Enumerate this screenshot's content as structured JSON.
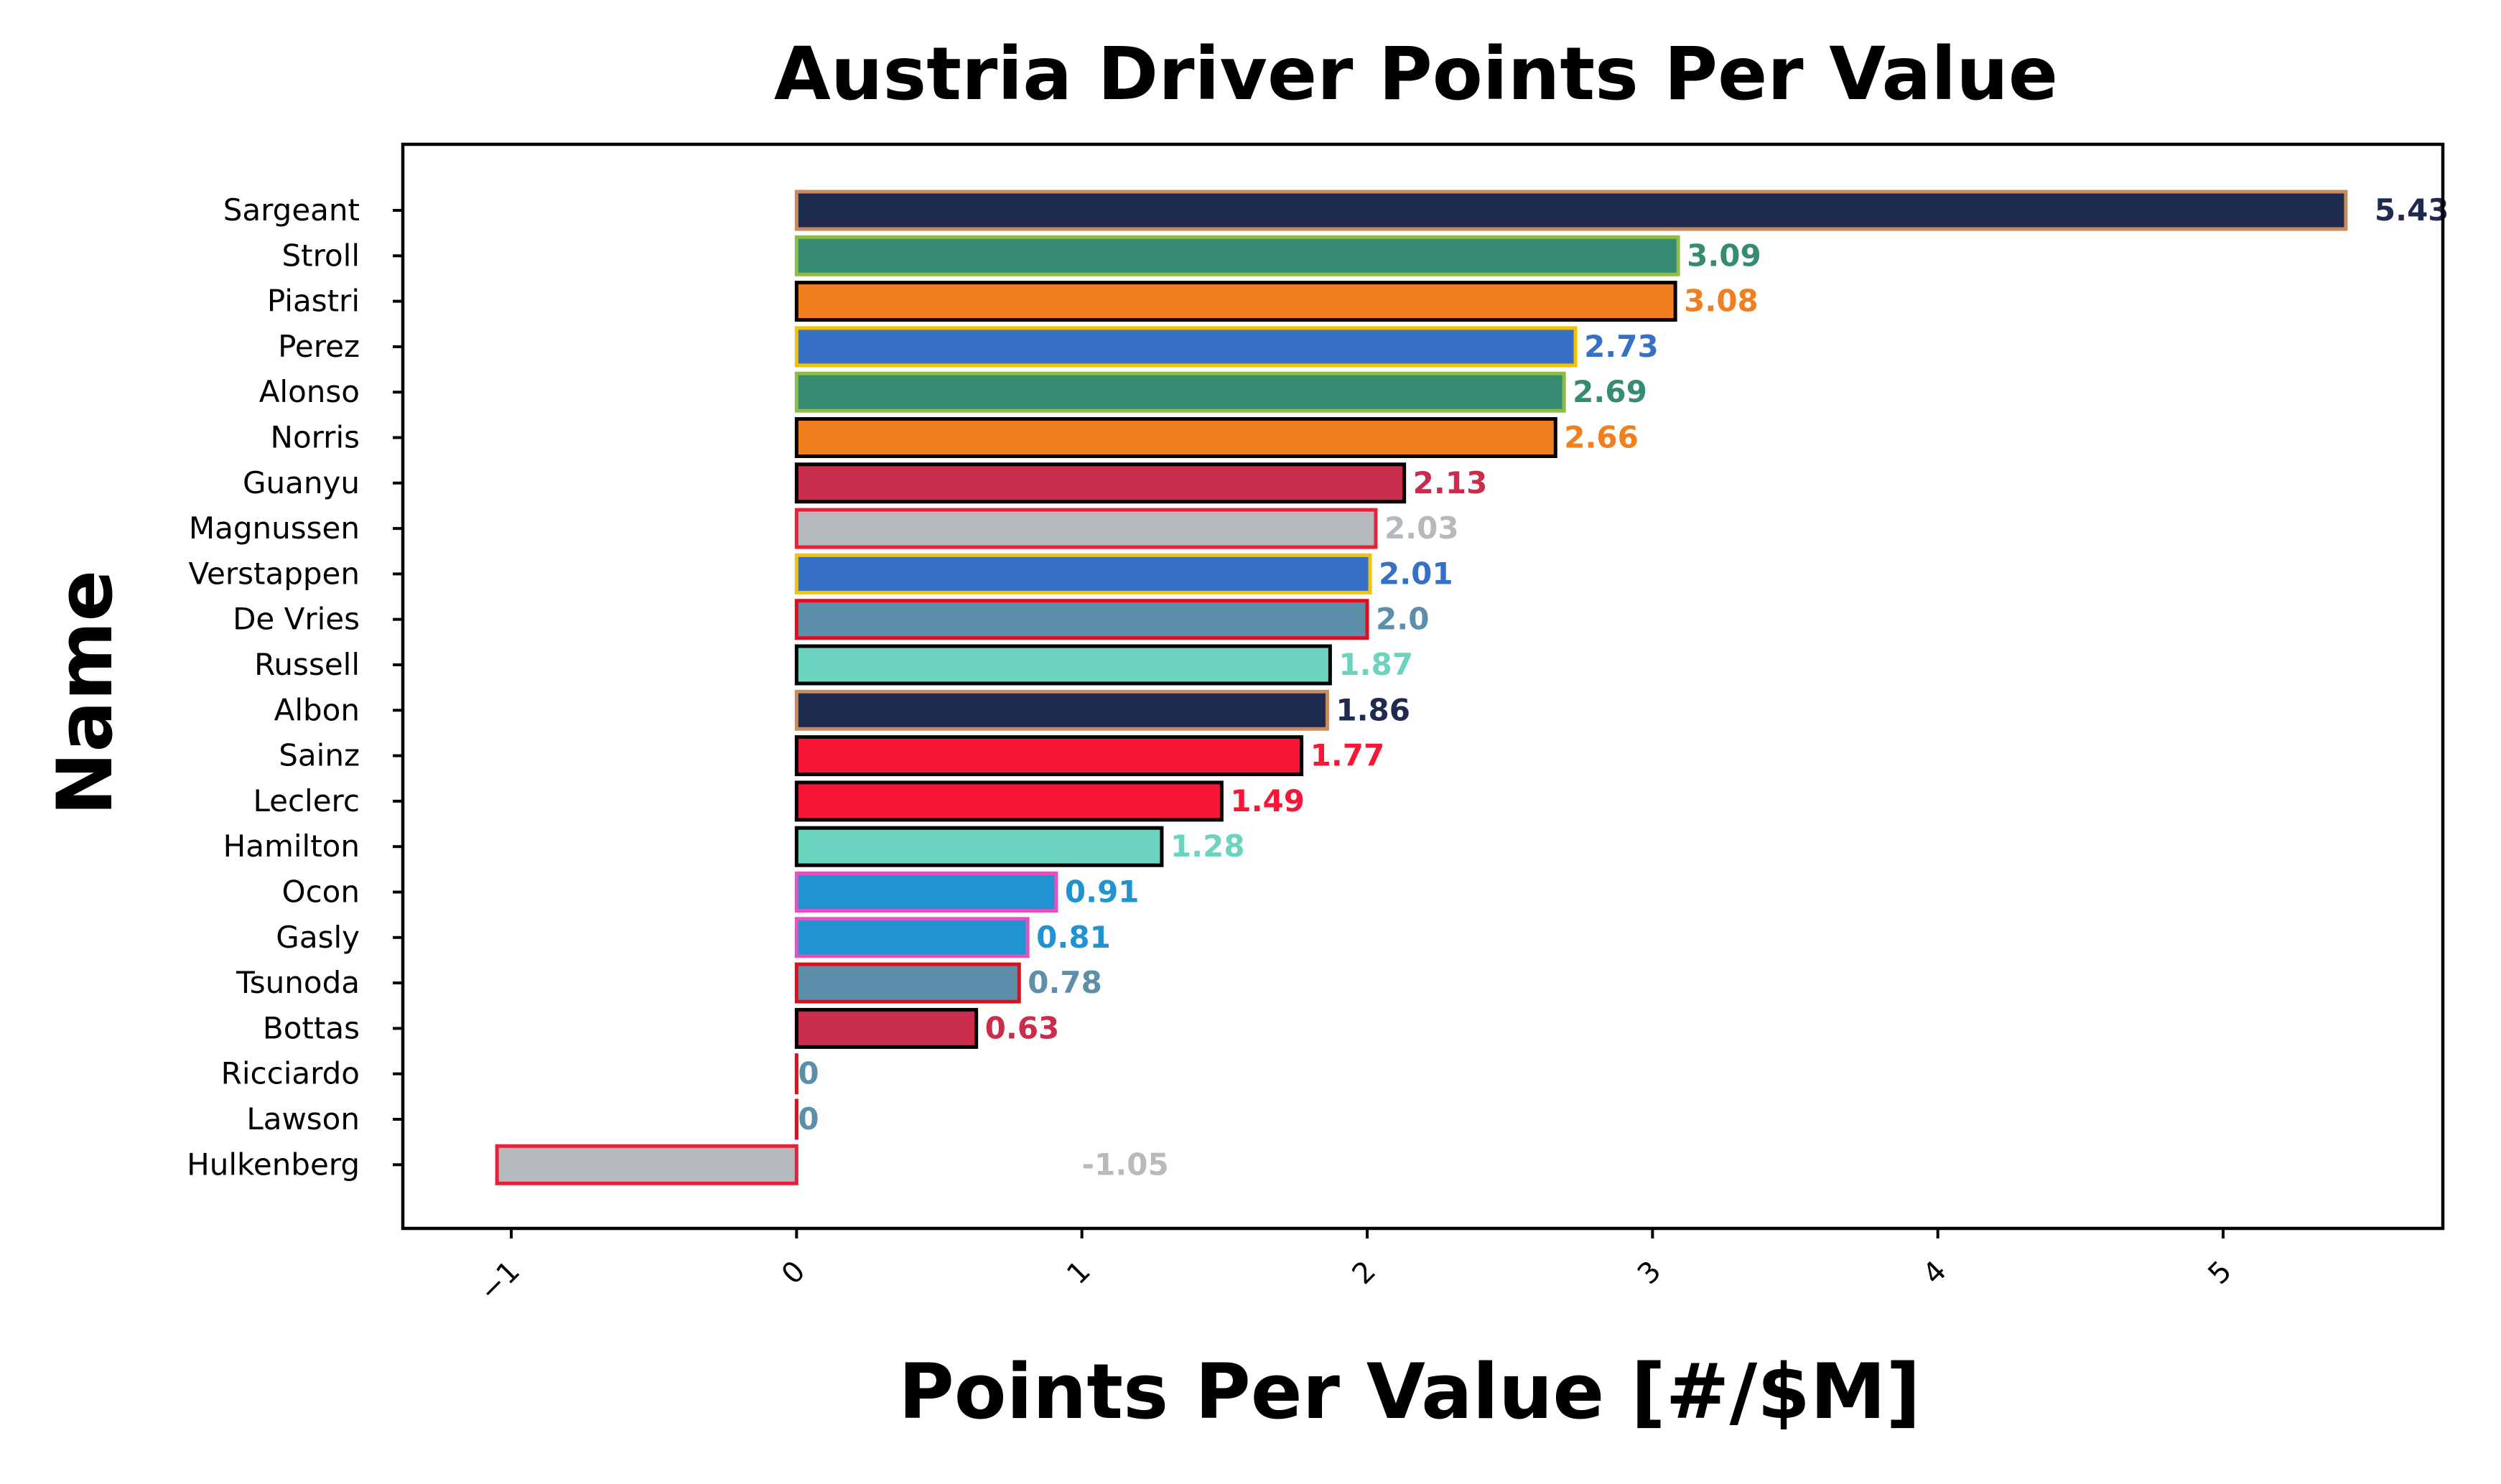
{
  "chart_data": {
    "type": "bar",
    "orientation": "horizontal",
    "title": "Austria Driver Points Per Value",
    "xlabel": "Points Per Value [#/$M]",
    "ylabel": "Name",
    "xlim": [
      -1.38,
      5.77
    ],
    "x_ticks": [
      -1,
      0,
      1,
      2,
      3,
      4,
      5
    ],
    "x_tick_labels": [
      "−1",
      "0",
      "1",
      "2",
      "3",
      "4",
      "5"
    ],
    "grid": false,
    "legend": "none",
    "categories": [
      "Sargeant",
      "Stroll",
      "Piastri",
      "Perez",
      "Alonso",
      "Norris",
      "Guanyu",
      "Magnussen",
      "Verstappen",
      "De Vries",
      "Russell",
      "Albon",
      "Sainz",
      "Leclerc",
      "Hamilton",
      "Ocon",
      "Gasly",
      "Tsunoda",
      "Bottas",
      "Ricciardo",
      "Lawson",
      "Hulkenberg"
    ],
    "values": [
      5.43,
      3.09,
      3.08,
      2.73,
      2.69,
      2.66,
      2.13,
      2.03,
      2.01,
      2.0,
      1.87,
      1.86,
      1.77,
      1.49,
      1.28,
      0.91,
      0.81,
      0.78,
      0.63,
      0,
      0,
      -1.05
    ],
    "value_labels": [
      "5.43",
      "3.09",
      "3.08",
      "2.73",
      "2.69",
      "2.66",
      "2.13",
      "2.03",
      "2.01",
      "2.0",
      "1.87",
      "1.86",
      "1.77",
      "1.49",
      "1.28",
      "0.91",
      "0.81",
      "0.78",
      "0.63",
      "0",
      "0",
      "-1.05"
    ],
    "fill_colors": [
      "#1e2a4e",
      "#358c72",
      "#f27f1e",
      "#3671c6",
      "#358c72",
      "#f27f1e",
      "#c92d4b",
      "#b6babd",
      "#3671c6",
      "#5e8faa",
      "#6cd3bf",
      "#1e2a4e",
      "#f91536",
      "#f91536",
      "#6cd3bf",
      "#2293d1",
      "#2293d1",
      "#5e8faa",
      "#c92d4b",
      "#5e8faa",
      "#5e8faa",
      "#b6babd"
    ],
    "edge_colors": [
      "#c98a5e",
      "#8fbc48",
      "#000000",
      "#f5c200",
      "#8fbc48",
      "#000000",
      "#000000",
      "#e8213a",
      "#f5c200",
      "#e00e1d",
      "#000000",
      "#c98a5e",
      "#000000",
      "#000000",
      "#000000",
      "#e84fc2",
      "#e84fc2",
      "#e00e1d",
      "#000000",
      "#e00e1d",
      "#e00e1d",
      "#e8213a"
    ],
    "label_colors": [
      "#1e2a4e",
      "#358c72",
      "#f27f1e",
      "#3671c6",
      "#358c72",
      "#f27f1e",
      "#c92d4b",
      "#b6babd",
      "#3671c6",
      "#5e8faa",
      "#6cd3bf",
      "#1e2a4e",
      "#f91536",
      "#f91536",
      "#6cd3bf",
      "#2293d1",
      "#2293d1",
      "#5e8faa",
      "#c92d4b",
      "#5e8faa",
      "#5e8faa",
      "#b6babd"
    ]
  }
}
